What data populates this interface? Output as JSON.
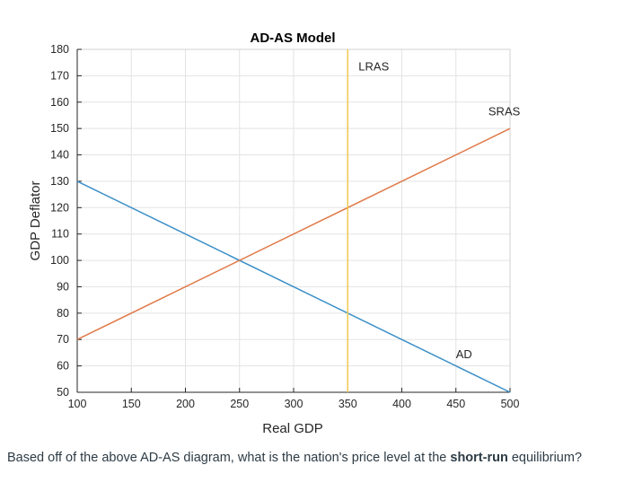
{
  "chart_data": {
    "type": "line",
    "title": "AD-AS Model",
    "xlabel": "Real GDP",
    "ylabel": "GDP Deflator",
    "xlim": [
      100,
      500
    ],
    "ylim": [
      50,
      180
    ],
    "xticks": [
      100,
      150,
      200,
      250,
      300,
      350,
      400,
      450,
      500
    ],
    "yticks": [
      50,
      60,
      70,
      80,
      90,
      100,
      110,
      120,
      130,
      140,
      150,
      160,
      170,
      180
    ],
    "grid": true,
    "series": [
      {
        "name": "AD",
        "color": "#3a8fc7",
        "x": [
          100,
          500
        ],
        "y": [
          130,
          50
        ],
        "label_at": [
          450,
          63
        ]
      },
      {
        "name": "SRAS",
        "color": "#e07a4a",
        "x": [
          100,
          500
        ],
        "y": [
          70,
          150
        ],
        "label_at": [
          480,
          155
        ]
      },
      {
        "name": "LRAS",
        "color": "#f2c94c",
        "x": [
          350,
          350
        ],
        "y": [
          50,
          180
        ],
        "label_at": [
          360,
          172
        ]
      }
    ]
  },
  "question": {
    "before": "Based off of the above AD-AS diagram, what is the nation's price level at the ",
    "bold": "short-run",
    "after": " equilibrium?"
  }
}
